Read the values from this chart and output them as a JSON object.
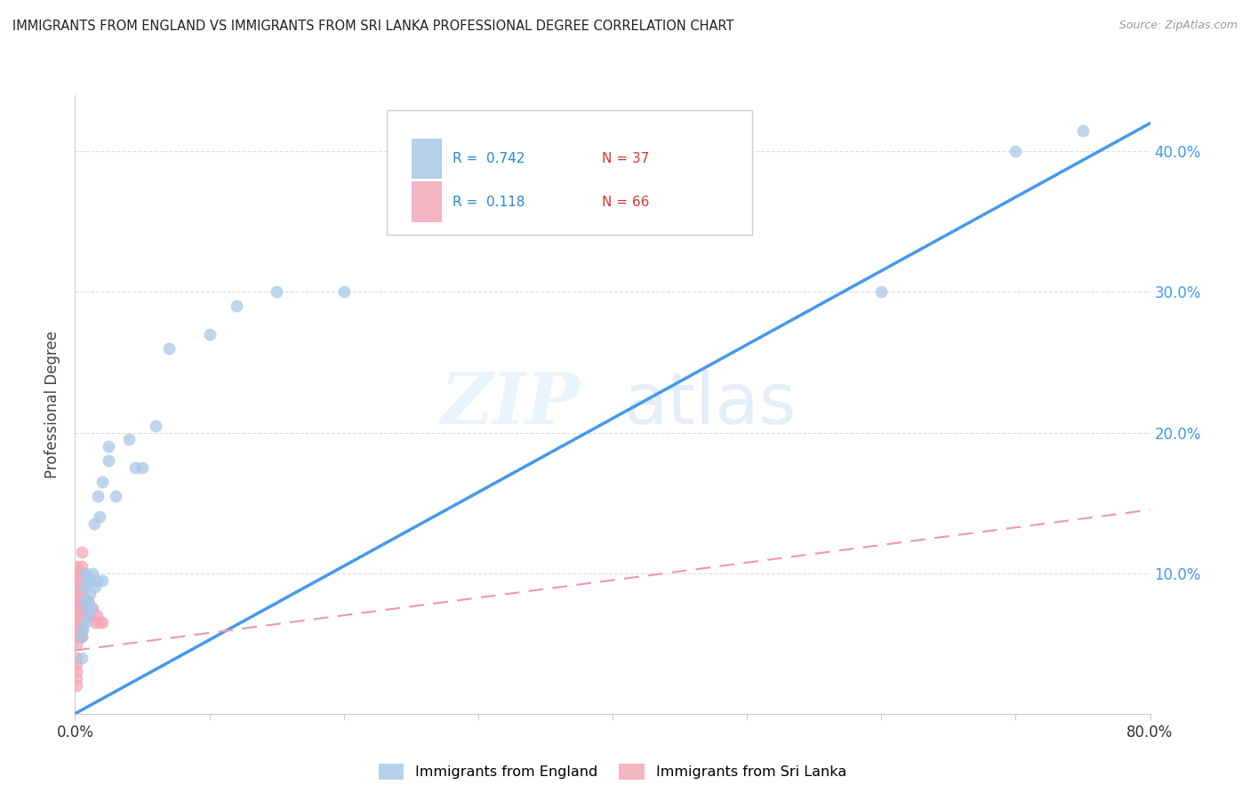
{
  "title": "IMMIGRANTS FROM ENGLAND VS IMMIGRANTS FROM SRI LANKA PROFESSIONAL DEGREE CORRELATION CHART",
  "source": "Source: ZipAtlas.com",
  "ylabel": "Professional Degree",
  "xlim": [
    0.0,
    0.8
  ],
  "ylim": [
    0.0,
    0.44
  ],
  "xtick_values": [
    0.0,
    0.1,
    0.2,
    0.3,
    0.4,
    0.5,
    0.6,
    0.7,
    0.8
  ],
  "ytick_values": [
    0.1,
    0.2,
    0.3,
    0.4
  ],
  "ytick_labels": [
    "10.0%",
    "20.0%",
    "30.0%",
    "40.0%"
  ],
  "england_R": 0.742,
  "england_N": 37,
  "srilanka_R": 0.118,
  "srilanka_N": 66,
  "england_color": "#a8c8e8",
  "srilanka_color": "#f4a8b8",
  "england_line_color": "#4499ee",
  "srilanka_line_color": "#ee99aa",
  "watermark_zip": "ZIP",
  "watermark_atlas": "atlas",
  "england_line_x0": 0.0,
  "england_line_y0": 0.0,
  "england_line_x1": 0.8,
  "england_line_y1": 0.42,
  "srilanka_line_x0": 0.0,
  "srilanka_line_y0": 0.045,
  "srilanka_line_x1": 0.8,
  "srilanka_line_y1": 0.145,
  "england_x": [
    0.005,
    0.005,
    0.006,
    0.007,
    0.007,
    0.008,
    0.008,
    0.009,
    0.009,
    0.01,
    0.01,
    0.011,
    0.011,
    0.012,
    0.013,
    0.014,
    0.015,
    0.016,
    0.017,
    0.018,
    0.02,
    0.02,
    0.025,
    0.025,
    0.03,
    0.04,
    0.045,
    0.05,
    0.06,
    0.07,
    0.1,
    0.12,
    0.15,
    0.2,
    0.6,
    0.7,
    0.75
  ],
  "england_y": [
    0.04,
    0.055,
    0.06,
    0.08,
    0.09,
    0.065,
    0.1,
    0.075,
    0.095,
    0.07,
    0.08,
    0.085,
    0.095,
    0.075,
    0.1,
    0.135,
    0.09,
    0.095,
    0.155,
    0.14,
    0.095,
    0.165,
    0.18,
    0.19,
    0.155,
    0.195,
    0.175,
    0.175,
    0.205,
    0.26,
    0.27,
    0.29,
    0.3,
    0.3,
    0.3,
    0.4,
    0.415
  ],
  "srilanka_x": [
    0.001,
    0.001,
    0.001,
    0.001,
    0.001,
    0.001,
    0.001,
    0.001,
    0.001,
    0.001,
    0.001,
    0.001,
    0.001,
    0.001,
    0.001,
    0.001,
    0.001,
    0.001,
    0.001,
    0.001,
    0.002,
    0.002,
    0.002,
    0.002,
    0.002,
    0.002,
    0.003,
    0.003,
    0.003,
    0.003,
    0.003,
    0.003,
    0.004,
    0.004,
    0.004,
    0.004,
    0.004,
    0.004,
    0.005,
    0.005,
    0.005,
    0.005,
    0.005,
    0.005,
    0.005,
    0.005,
    0.005,
    0.005,
    0.005,
    0.005,
    0.006,
    0.006,
    0.007,
    0.007,
    0.008,
    0.008,
    0.009,
    0.009,
    0.01,
    0.01,
    0.012,
    0.013,
    0.015,
    0.016,
    0.018,
    0.02
  ],
  "srilanka_y": [
    0.02,
    0.025,
    0.03,
    0.035,
    0.04,
    0.05,
    0.055,
    0.06,
    0.065,
    0.07,
    0.075,
    0.075,
    0.08,
    0.08,
    0.085,
    0.09,
    0.09,
    0.095,
    0.1,
    0.105,
    0.055,
    0.065,
    0.07,
    0.075,
    0.08,
    0.085,
    0.055,
    0.06,
    0.065,
    0.07,
    0.075,
    0.08,
    0.055,
    0.06,
    0.065,
    0.07,
    0.075,
    0.085,
    0.055,
    0.06,
    0.065,
    0.07,
    0.075,
    0.08,
    0.085,
    0.09,
    0.095,
    0.1,
    0.105,
    0.115,
    0.07,
    0.08,
    0.07,
    0.08,
    0.07,
    0.08,
    0.07,
    0.075,
    0.07,
    0.08,
    0.07,
    0.075,
    0.065,
    0.07,
    0.065,
    0.065
  ]
}
